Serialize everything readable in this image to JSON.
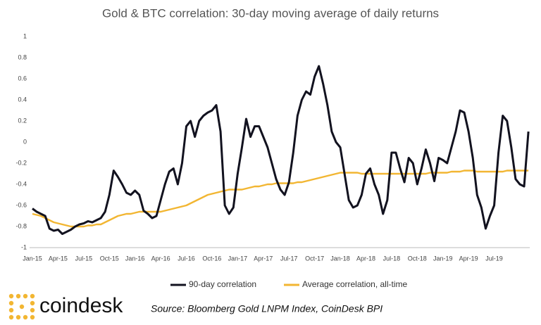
{
  "chart_data": {
    "type": "line",
    "title": "Gold & BTC correlation: 30-day moving average of daily returns",
    "categories": [
      "Jan-15",
      null,
      null,
      null,
      null,
      null,
      "Apr-15",
      null,
      null,
      null,
      null,
      null,
      "Jul-15",
      null,
      null,
      null,
      null,
      null,
      "Oct-15",
      null,
      null,
      null,
      null,
      null,
      "Jan-16",
      null,
      null,
      null,
      null,
      null,
      "Apr-16",
      null,
      null,
      null,
      null,
      null,
      "Jul-16",
      null,
      null,
      null,
      null,
      null,
      "Oct-16",
      null,
      null,
      null,
      null,
      null,
      "Jan-17",
      null,
      null,
      null,
      null,
      null,
      "Apr-17",
      null,
      null,
      null,
      null,
      null,
      "Jul-17",
      null,
      null,
      null,
      null,
      null,
      "Oct-17",
      null,
      null,
      null,
      null,
      null,
      "Jan-18",
      null,
      null,
      null,
      null,
      null,
      "Apr-18",
      null,
      null,
      null,
      null,
      null,
      "Jul-18",
      null,
      null,
      null,
      null,
      null,
      "Oct-18",
      null,
      null,
      null,
      null,
      null,
      "Jan-19",
      null,
      null,
      null,
      null,
      null,
      "Apr-19",
      null,
      null,
      null,
      null,
      null,
      "Jul-19",
      null,
      null,
      null,
      null,
      null,
      null,
      null,
      null
    ],
    "series": [
      {
        "name": "90-day correlation",
        "color": "#12121f",
        "values": [
          -0.63,
          -0.66,
          -0.68,
          -0.7,
          -0.82,
          -0.84,
          -0.83,
          -0.87,
          -0.85,
          -0.83,
          -0.8,
          -0.78,
          -0.77,
          -0.75,
          -0.76,
          -0.74,
          -0.72,
          -0.66,
          -0.5,
          -0.27,
          -0.33,
          -0.4,
          -0.48,
          -0.5,
          -0.46,
          -0.5,
          -0.65,
          -0.68,
          -0.72,
          -0.7,
          -0.55,
          -0.4,
          -0.28,
          -0.25,
          -0.4,
          -0.2,
          0.15,
          0.2,
          0.05,
          0.2,
          0.25,
          0.28,
          0.3,
          0.35,
          0.1,
          -0.6,
          -0.68,
          -0.62,
          -0.3,
          -0.05,
          0.22,
          0.05,
          0.15,
          0.15,
          0.05,
          -0.05,
          -0.2,
          -0.35,
          -0.45,
          -0.5,
          -0.38,
          -0.1,
          0.25,
          0.4,
          0.48,
          0.45,
          0.62,
          0.72,
          0.55,
          0.35,
          0.1,
          0,
          -0.05,
          -0.3,
          -0.55,
          -0.62,
          -0.6,
          -0.5,
          -0.3,
          -0.25,
          -0.4,
          -0.5,
          -0.68,
          -0.55,
          -0.1,
          -0.1,
          -0.25,
          -0.38,
          -0.15,
          -0.2,
          -0.4,
          -0.25,
          -0.07,
          -0.2,
          -0.37,
          -0.15,
          -0.17,
          -0.2,
          -0.05,
          0.1,
          0.3,
          0.28,
          0.1,
          -0.15,
          -0.5,
          -0.62,
          -0.82,
          -0.7,
          -0.6,
          -0.1,
          0.25,
          0.2,
          -0.05,
          -0.35,
          -0.4,
          -0.42,
          0.1
        ]
      },
      {
        "name": "Average correlation, all-time",
        "color": "#f2b632",
        "values": [
          -0.68,
          -0.69,
          -0.7,
          -0.72,
          -0.74,
          -0.76,
          -0.77,
          -0.78,
          -0.79,
          -0.8,
          -0.8,
          -0.8,
          -0.8,
          -0.79,
          -0.79,
          -0.78,
          -0.78,
          -0.76,
          -0.74,
          -0.72,
          -0.7,
          -0.69,
          -0.68,
          -0.68,
          -0.67,
          -0.66,
          -0.66,
          -0.66,
          -0.66,
          -0.66,
          -0.66,
          -0.65,
          -0.64,
          -0.63,
          -0.62,
          -0.61,
          -0.6,
          -0.58,
          -0.56,
          -0.54,
          -0.52,
          -0.5,
          -0.49,
          -0.48,
          -0.47,
          -0.46,
          -0.45,
          -0.45,
          -0.45,
          -0.45,
          -0.44,
          -0.43,
          -0.42,
          -0.42,
          -0.41,
          -0.4,
          -0.4,
          -0.39,
          -0.39,
          -0.39,
          -0.39,
          -0.39,
          -0.38,
          -0.38,
          -0.37,
          -0.36,
          -0.35,
          -0.34,
          -0.33,
          -0.32,
          -0.31,
          -0.3,
          -0.29,
          -0.29,
          -0.29,
          -0.29,
          -0.29,
          -0.3,
          -0.3,
          -0.3,
          -0.3,
          -0.3,
          -0.3,
          -0.3,
          -0.3,
          -0.3,
          -0.3,
          -0.3,
          -0.3,
          -0.3,
          -0.3,
          -0.3,
          -0.3,
          -0.29,
          -0.29,
          -0.29,
          -0.29,
          -0.29,
          -0.28,
          -0.28,
          -0.28,
          -0.27,
          -0.27,
          -0.27,
          -0.28,
          -0.28,
          -0.28,
          -0.28,
          -0.28,
          -0.28,
          -0.28,
          -0.27,
          -0.27,
          -0.27,
          -0.27,
          -0.27,
          -0.27
        ]
      }
    ],
    "ylim": [
      -1,
      1
    ],
    "yticks": [
      -1,
      -0.8,
      -0.6,
      -0.4,
      -0.2,
      0,
      0.2,
      0.4,
      0.6,
      0.8,
      1
    ],
    "legend": "bottom"
  },
  "brand": "coindesk",
  "source": "Source: Bloomberg Gold LNPM Index, CoinDesk BPI"
}
